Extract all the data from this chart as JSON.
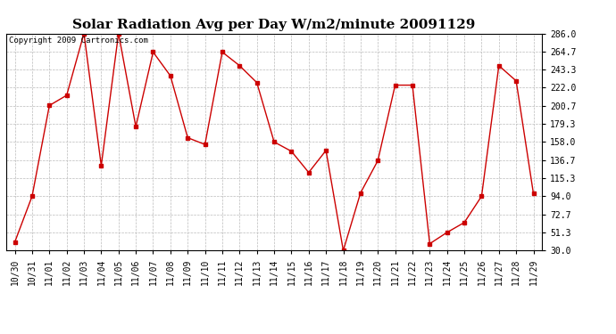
{
  "title": "Solar Radiation Avg per Day W/m2/minute 20091129",
  "copyright": "Copyright 2009 Cartronics.com",
  "dates": [
    "10/30",
    "10/31",
    "11/01",
    "11/02",
    "11/03",
    "11/04",
    "11/05",
    "11/06",
    "11/07",
    "11/08",
    "11/09",
    "11/10",
    "11/11",
    "11/12",
    "11/13",
    "11/14",
    "11/15",
    "11/16",
    "11/17",
    "11/18",
    "11/19",
    "11/20",
    "11/21",
    "11/22",
    "11/23",
    "11/24",
    "11/25",
    "11/26",
    "11/27",
    "11/28",
    "11/29"
  ],
  "values": [
    40.0,
    94.0,
    201.0,
    213.0,
    286.0,
    130.0,
    286.0,
    176.0,
    264.0,
    236.0,
    163.0,
    155.0,
    264.0,
    248.0,
    228.0,
    158.0,
    147.0,
    122.0,
    148.0,
    30.0,
    98.0,
    136.0,
    225.0,
    225.0,
    38.0,
    51.3,
    63.0,
    94.0,
    248.0,
    230.0,
    97.0
  ],
  "ylim": [
    30.0,
    286.0
  ],
  "yticks": [
    30.0,
    51.3,
    72.7,
    94.0,
    115.3,
    136.7,
    158.0,
    179.3,
    200.7,
    222.0,
    243.3,
    264.7,
    286.0
  ],
  "line_color": "#cc0000",
  "marker": "s",
  "marker_size": 2.5,
  "bg_color": "#ffffff",
  "plot_bg_color": "#ffffff",
  "grid_color": "#bbbbbb",
  "title_fontsize": 11,
  "tick_fontsize": 7,
  "copyright_fontsize": 6.5
}
